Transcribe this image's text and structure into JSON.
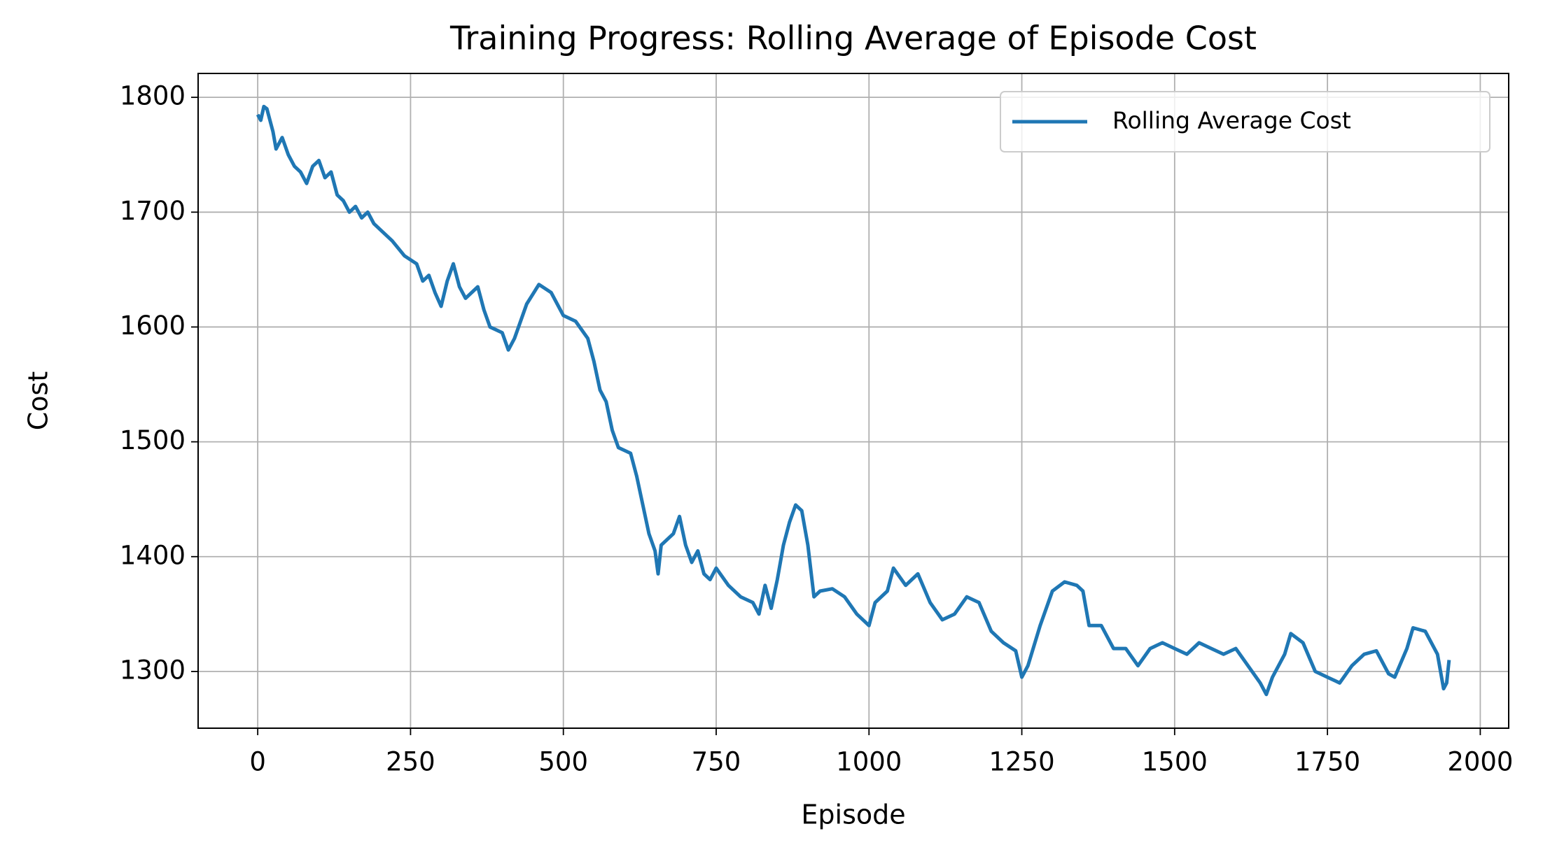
{
  "chart_data": {
    "type": "line",
    "title": "Training Progress: Rolling Average of Episode Cost",
    "xlabel": "Episode",
    "ylabel": "Cost",
    "x": [
      0,
      5,
      10,
      15,
      20,
      25,
      30,
      40,
      50,
      60,
      70,
      80,
      90,
      100,
      110,
      120,
      130,
      140,
      150,
      160,
      170,
      180,
      190,
      200,
      220,
      240,
      260,
      270,
      280,
      290,
      300,
      310,
      320,
      330,
      340,
      360,
      370,
      380,
      400,
      410,
      420,
      440,
      460,
      480,
      500,
      520,
      540,
      550,
      560,
      570,
      580,
      590,
      610,
      620,
      630,
      640,
      650,
      655,
      660,
      680,
      690,
      700,
      710,
      720,
      730,
      740,
      750,
      770,
      790,
      810,
      820,
      830,
      840,
      850,
      860,
      870,
      880,
      890,
      900,
      910,
      920,
      940,
      960,
      980,
      1000,
      1010,
      1030,
      1040,
      1060,
      1080,
      1100,
      1120,
      1140,
      1160,
      1180,
      1200,
      1220,
      1240,
      1250,
      1260,
      1280,
      1300,
      1320,
      1340,
      1350,
      1360,
      1380,
      1400,
      1420,
      1440,
      1460,
      1480,
      1500,
      1520,
      1540,
      1560,
      1580,
      1600,
      1620,
      1640,
      1650,
      1660,
      1680,
      1690,
      1710,
      1730,
      1750,
      1770,
      1790,
      1810,
      1830,
      1850,
      1860,
      1880,
      1890,
      1910,
      1930,
      1940,
      1945,
      1949
    ],
    "series": [
      {
        "name": "Rolling Average Cost",
        "color": "#1f77b4",
        "values": [
          1785,
          1780,
          1792,
          1790,
          1780,
          1770,
          1755,
          1765,
          1750,
          1740,
          1735,
          1725,
          1740,
          1745,
          1730,
          1735,
          1715,
          1710,
          1700,
          1705,
          1695,
          1700,
          1690,
          1685,
          1675,
          1662,
          1655,
          1640,
          1645,
          1630,
          1618,
          1640,
          1655,
          1635,
          1625,
          1635,
          1615,
          1600,
          1595,
          1580,
          1590,
          1620,
          1637,
          1630,
          1610,
          1605,
          1590,
          1570,
          1545,
          1535,
          1510,
          1495,
          1490,
          1470,
          1445,
          1420,
          1405,
          1385,
          1410,
          1420,
          1435,
          1410,
          1395,
          1405,
          1385,
          1380,
          1390,
          1375,
          1365,
          1360,
          1350,
          1375,
          1355,
          1380,
          1410,
          1430,
          1445,
          1440,
          1410,
          1365,
          1370,
          1372,
          1365,
          1350,
          1340,
          1360,
          1370,
          1390,
          1375,
          1385,
          1360,
          1345,
          1350,
          1365,
          1360,
          1335,
          1325,
          1318,
          1295,
          1305,
          1340,
          1370,
          1378,
          1375,
          1370,
          1340,
          1340,
          1320,
          1320,
          1305,
          1320,
          1325,
          1320,
          1315,
          1325,
          1320,
          1315,
          1320,
          1305,
          1290,
          1280,
          1295,
          1315,
          1333,
          1325,
          1300,
          1295,
          1290,
          1305,
          1315,
          1318,
          1298,
          1295,
          1320,
          1338,
          1335,
          1315,
          1285,
          1290,
          1310
        ]
      }
    ],
    "xlim": [
      -97.5,
      2046.5
    ],
    "ylim": [
      1250.6,
      1820.8
    ],
    "xticks": [
      0,
      250,
      500,
      750,
      1000,
      1250,
      1500,
      1750,
      2000
    ],
    "yticks": [
      1300,
      1400,
      1500,
      1600,
      1700,
      1800
    ],
    "grid": true,
    "legend": "upper right"
  }
}
